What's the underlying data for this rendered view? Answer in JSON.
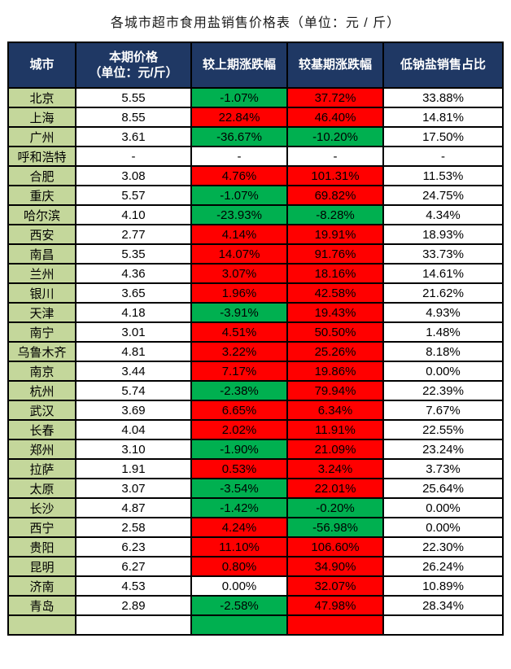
{
  "title": "各城市超市食用盐销售价格表（单位：元 / 斤）",
  "colors": {
    "header_bg": "#1F3864",
    "header_text": "#FFFFFF",
    "city_bg": "#C4D79B",
    "up_bg": "#FF0000",
    "down_bg": "#00B050",
    "neutral_bg": "#FFFFFF",
    "border": "#000000",
    "text": "#000000",
    "title_text": "#1A1A1A",
    "page_bg": "#FFFFFF"
  },
  "header": {
    "col_city": "城市",
    "col_price_line1": "本期价格",
    "col_price_line2": "（单位：元/斤）",
    "col_vs_prev": "较上期涨跌幅",
    "col_vs_base": "较基期涨跌幅",
    "col_low_sodium": "低钠盐销售占比"
  },
  "chart_data": {
    "type": "table",
    "title": "各城市超市食用盐销售价格表（单位：元 / 斤）",
    "columns": [
      "城市",
      "本期价格（单位：元/斤）",
      "较上期涨跌幅",
      "较基期涨跌幅",
      "低钠盐销售占比"
    ],
    "color_legend": {
      "up": "#FF0000",
      "down": "#00B050",
      "flat_or_none": "#FFFFFF"
    },
    "rows": [
      {
        "city": "北京",
        "price": "5.55",
        "vs_prev": "-1.07%",
        "vs_prev_trend": "down",
        "vs_base": "37.72%",
        "vs_base_trend": "up",
        "low_sodium_share": "33.88%"
      },
      {
        "city": "上海",
        "price": "8.55",
        "vs_prev": "22.84%",
        "vs_prev_trend": "up",
        "vs_base": "46.40%",
        "vs_base_trend": "up",
        "low_sodium_share": "14.81%"
      },
      {
        "city": "广州",
        "price": "3.61",
        "vs_prev": "-36.67%",
        "vs_prev_trend": "down",
        "vs_base": "-10.20%",
        "vs_base_trend": "down",
        "low_sodium_share": "17.50%"
      },
      {
        "city": "呼和浩特",
        "price": "-",
        "vs_prev": "-",
        "vs_prev_trend": "none",
        "vs_base": "-",
        "vs_base_trend": "none",
        "low_sodium_share": "-"
      },
      {
        "city": "合肥",
        "price": "3.08",
        "vs_prev": "4.76%",
        "vs_prev_trend": "up",
        "vs_base": "101.31%",
        "vs_base_trend": "up",
        "low_sodium_share": "11.53%"
      },
      {
        "city": "重庆",
        "price": "5.57",
        "vs_prev": "-1.07%",
        "vs_prev_trend": "down",
        "vs_base": "69.82%",
        "vs_base_trend": "up",
        "low_sodium_share": "24.75%"
      },
      {
        "city": "哈尔滨",
        "price": "4.10",
        "vs_prev": "-23.93%",
        "vs_prev_trend": "down",
        "vs_base": "-8.28%",
        "vs_base_trend": "down",
        "low_sodium_share": "4.34%"
      },
      {
        "city": "西安",
        "price": "2.77",
        "vs_prev": "4.14%",
        "vs_prev_trend": "up",
        "vs_base": "19.91%",
        "vs_base_trend": "up",
        "low_sodium_share": "18.93%"
      },
      {
        "city": "南昌",
        "price": "5.35",
        "vs_prev": "14.07%",
        "vs_prev_trend": "up",
        "vs_base": "91.76%",
        "vs_base_trend": "up",
        "low_sodium_share": "33.73%"
      },
      {
        "city": "兰州",
        "price": "4.36",
        "vs_prev": "3.07%",
        "vs_prev_trend": "up",
        "vs_base": "18.16%",
        "vs_base_trend": "up",
        "low_sodium_share": "14.61%"
      },
      {
        "city": "银川",
        "price": "3.65",
        "vs_prev": "1.96%",
        "vs_prev_trend": "up",
        "vs_base": "42.58%",
        "vs_base_trend": "up",
        "low_sodium_share": "21.62%"
      },
      {
        "city": "天津",
        "price": "4.18",
        "vs_prev": "-3.91%",
        "vs_prev_trend": "down",
        "vs_base": "19.43%",
        "vs_base_trend": "up",
        "low_sodium_share": "4.93%"
      },
      {
        "city": "南宁",
        "price": "3.01",
        "vs_prev": "4.51%",
        "vs_prev_trend": "up",
        "vs_base": "50.50%",
        "vs_base_trend": "up",
        "low_sodium_share": "1.48%"
      },
      {
        "city": "乌鲁木齐",
        "price": "4.81",
        "vs_prev": "3.22%",
        "vs_prev_trend": "up",
        "vs_base": "25.26%",
        "vs_base_trend": "up",
        "low_sodium_share": "8.18%"
      },
      {
        "city": "南京",
        "price": "3.44",
        "vs_prev": "7.17%",
        "vs_prev_trend": "up",
        "vs_base": "19.86%",
        "vs_base_trend": "up",
        "low_sodium_share": "0.00%"
      },
      {
        "city": "杭州",
        "price": "5.74",
        "vs_prev": "-2.38%",
        "vs_prev_trend": "down",
        "vs_base": "79.94%",
        "vs_base_trend": "up",
        "low_sodium_share": "22.39%"
      },
      {
        "city": "武汉",
        "price": "3.69",
        "vs_prev": "6.65%",
        "vs_prev_trend": "up",
        "vs_base": "6.34%",
        "vs_base_trend": "up",
        "low_sodium_share": "7.67%"
      },
      {
        "city": "长春",
        "price": "4.04",
        "vs_prev": "2.02%",
        "vs_prev_trend": "up",
        "vs_base": "11.91%",
        "vs_base_trend": "up",
        "low_sodium_share": "22.55%"
      },
      {
        "city": "郑州",
        "price": "3.10",
        "vs_prev": "-1.90%",
        "vs_prev_trend": "down",
        "vs_base": "21.09%",
        "vs_base_trend": "up",
        "low_sodium_share": "23.24%"
      },
      {
        "city": "拉萨",
        "price": "1.91",
        "vs_prev": "0.53%",
        "vs_prev_trend": "up",
        "vs_base": "3.24%",
        "vs_base_trend": "up",
        "low_sodium_share": "3.73%"
      },
      {
        "city": "太原",
        "price": "3.07",
        "vs_prev": "-3.54%",
        "vs_prev_trend": "down",
        "vs_base": "22.01%",
        "vs_base_trend": "up",
        "low_sodium_share": "25.64%"
      },
      {
        "city": "长沙",
        "price": "4.87",
        "vs_prev": "-1.42%",
        "vs_prev_trend": "down",
        "vs_base": "-0.20%",
        "vs_base_trend": "down",
        "low_sodium_share": "0.00%"
      },
      {
        "city": "西宁",
        "price": "2.58",
        "vs_prev": "4.24%",
        "vs_prev_trend": "up",
        "vs_base": "-56.98%",
        "vs_base_trend": "down",
        "low_sodium_share": "0.00%"
      },
      {
        "city": "贵阳",
        "price": "6.23",
        "vs_prev": "11.10%",
        "vs_prev_trend": "up",
        "vs_base": "106.60%",
        "vs_base_trend": "up",
        "low_sodium_share": "22.30%"
      },
      {
        "city": "昆明",
        "price": "6.27",
        "vs_prev": "0.80%",
        "vs_prev_trend": "up",
        "vs_base": "34.90%",
        "vs_base_trend": "up",
        "low_sodium_share": "26.24%"
      },
      {
        "city": "济南",
        "price": "4.53",
        "vs_prev": "0.00%",
        "vs_prev_trend": "flat",
        "vs_base": "32.07%",
        "vs_base_trend": "up",
        "low_sodium_share": "10.89%"
      },
      {
        "city": "青岛",
        "price": "2.89",
        "vs_prev": "-2.58%",
        "vs_prev_trend": "down",
        "vs_base": "47.98%",
        "vs_base_trend": "up",
        "low_sodium_share": "28.34%"
      }
    ],
    "partial_row_clipped_at_bottom": {
      "city": "",
      "price": "",
      "vs_prev": "",
      "vs_prev_trend": "down",
      "vs_base": "",
      "vs_base_trend": "up",
      "low_sodium_share": ""
    }
  }
}
